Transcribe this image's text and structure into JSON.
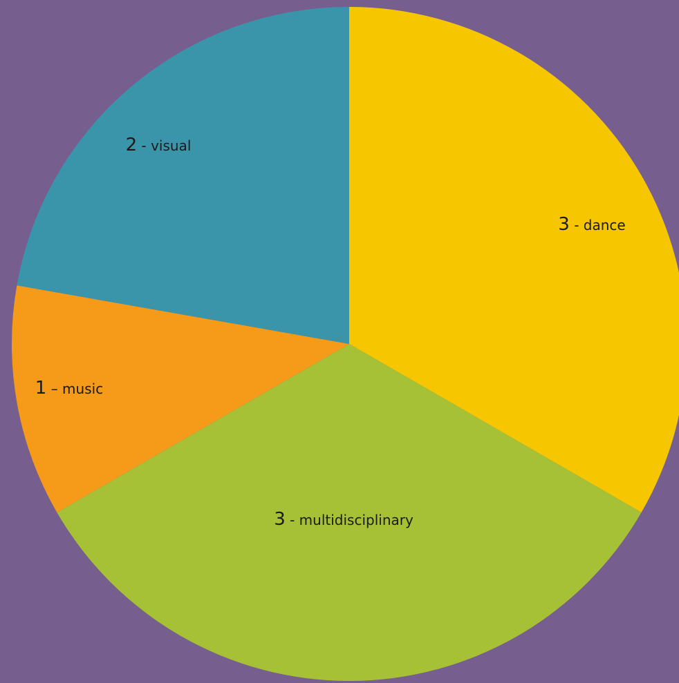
{
  "chart_data": {
    "type": "pie",
    "title": "",
    "start_angle_deg": 0,
    "direction": "clockwise",
    "background": "#765f8f",
    "slices": [
      {
        "label": "3 - dance",
        "number": "3",
        "text": " - dance",
        "value": 3,
        "color": "#f6c600"
      },
      {
        "label": "3 - multidisciplinary",
        "number": "3",
        "text": " - multidisciplinary",
        "value": 3,
        "color": "#a6c136"
      },
      {
        "label": "1 – music",
        "number": "1",
        "text": " – music",
        "value": 1,
        "color": "#f59a19"
      },
      {
        "label": "2 - visual",
        "number": "2",
        "text": " - visual",
        "value": 2,
        "color": "#3a95ab"
      }
    ]
  }
}
